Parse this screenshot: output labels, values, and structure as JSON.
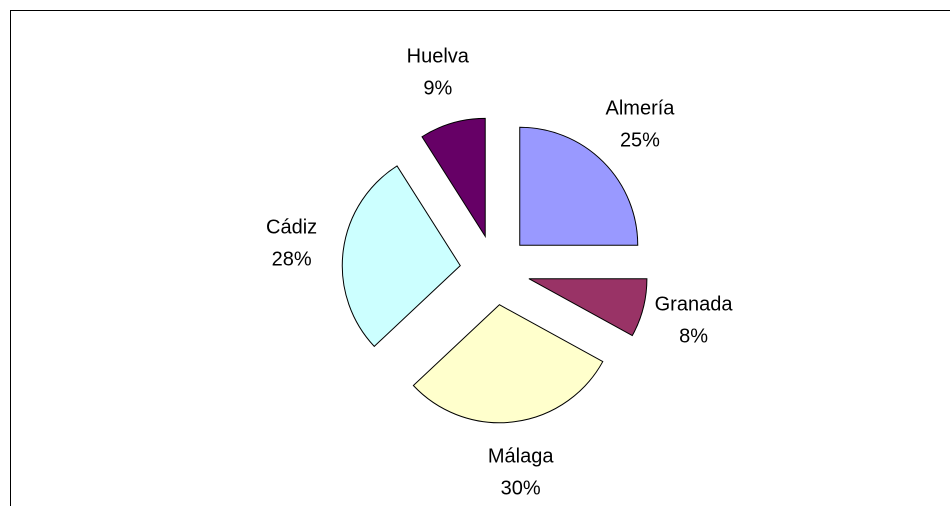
{
  "chart_data": {
    "type": "pie",
    "categories": [
      "Almería",
      "Granada",
      "Málaga",
      "Cádiz",
      "Huelva"
    ],
    "values": [
      25,
      8,
      30,
      28,
      9
    ],
    "value_labels": [
      "25%",
      "8%",
      "30%",
      "28%",
      "9%"
    ],
    "colors": [
      "#9999ff",
      "#993366",
      "#ffffcc",
      "#ccffff",
      "#660066"
    ]
  }
}
